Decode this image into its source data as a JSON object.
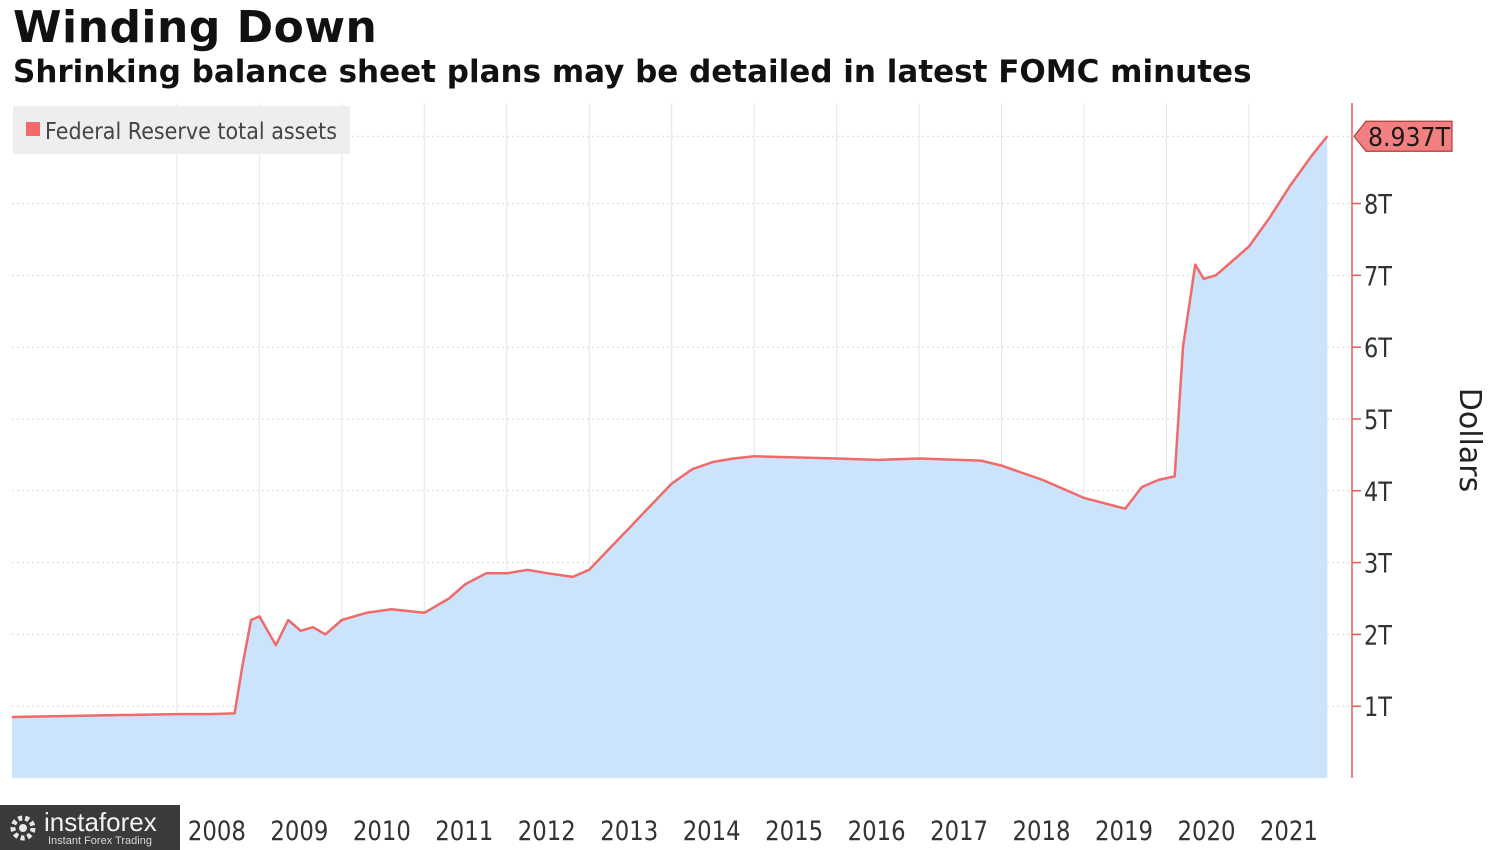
{
  "title": "Winding Down",
  "subtitle": "Shrinking balance sheet plans may be detailed in latest FOMC minutes",
  "watermark": {
    "name": "instaforex",
    "tagline": "Instant Forex Trading"
  },
  "colors": {
    "line": "#f06a6a",
    "area": "#cce4fb",
    "axis": "#e55b5b",
    "grid": "#d9d9d9",
    "label_box": "#f28080"
  },
  "chart_data": {
    "type": "area",
    "title": "Winding Down",
    "subtitle": "Shrinking balance sheet plans may be detailed in latest FOMC minutes",
    "ylabel": "Dollars",
    "xlabel": "",
    "ylim": [
      0,
      9.4
    ],
    "x_range": [
      2006.0,
      2022.25
    ],
    "grid": true,
    "legend_placement": "top-left",
    "x_ticks": [
      {
        "value": 2008,
        "label": "2008"
      },
      {
        "value": 2009,
        "label": "2009"
      },
      {
        "value": 2010,
        "label": "2010"
      },
      {
        "value": 2011,
        "label": "2011"
      },
      {
        "value": 2012,
        "label": "2012"
      },
      {
        "value": 2013,
        "label": "2013"
      },
      {
        "value": 2014,
        "label": "2014"
      },
      {
        "value": 2015,
        "label": "2015"
      },
      {
        "value": 2016,
        "label": "2016"
      },
      {
        "value": 2017,
        "label": "2017"
      },
      {
        "value": 2018,
        "label": "2018"
      },
      {
        "value": 2019,
        "label": "2019"
      },
      {
        "value": 2020,
        "label": "2020"
      },
      {
        "value": 2021,
        "label": "2021"
      }
    ],
    "y_ticks": [
      {
        "value": 1,
        "label": "1T"
      },
      {
        "value": 2,
        "label": "2T"
      },
      {
        "value": 3,
        "label": "3T"
      },
      {
        "value": 4,
        "label": "4T"
      },
      {
        "value": 5,
        "label": "5T"
      },
      {
        "value": 6,
        "label": "6T"
      },
      {
        "value": 7,
        "label": "7T"
      },
      {
        "value": 8,
        "label": "8T"
      }
    ],
    "last_value_label": "8.937T",
    "series": [
      {
        "name": "Federal Reserve total assets",
        "points": [
          [
            2006.0,
            0.85
          ],
          [
            2007.0,
            0.87
          ],
          [
            2008.0,
            0.89
          ],
          [
            2008.4,
            0.89
          ],
          [
            2008.7,
            0.9
          ],
          [
            2008.8,
            1.6
          ],
          [
            2008.9,
            2.2
          ],
          [
            2009.0,
            2.25
          ],
          [
            2009.1,
            2.05
          ],
          [
            2009.2,
            1.85
          ],
          [
            2009.35,
            2.2
          ],
          [
            2009.5,
            2.05
          ],
          [
            2009.65,
            2.1
          ],
          [
            2009.8,
            2.0
          ],
          [
            2010.0,
            2.2
          ],
          [
            2010.3,
            2.3
          ],
          [
            2010.6,
            2.35
          ],
          [
            2011.0,
            2.3
          ],
          [
            2011.3,
            2.5
          ],
          [
            2011.5,
            2.7
          ],
          [
            2011.75,
            2.85
          ],
          [
            2012.0,
            2.85
          ],
          [
            2012.25,
            2.9
          ],
          [
            2012.5,
            2.85
          ],
          [
            2012.8,
            2.8
          ],
          [
            2013.0,
            2.9
          ],
          [
            2013.25,
            3.2
          ],
          [
            2013.5,
            3.5
          ],
          [
            2013.75,
            3.8
          ],
          [
            2014.0,
            4.1
          ],
          [
            2014.25,
            4.3
          ],
          [
            2014.5,
            4.4
          ],
          [
            2014.75,
            4.45
          ],
          [
            2015.0,
            4.48
          ],
          [
            2016.0,
            4.45
          ],
          [
            2016.5,
            4.43
          ],
          [
            2017.0,
            4.45
          ],
          [
            2017.75,
            4.42
          ],
          [
            2018.0,
            4.35
          ],
          [
            2018.5,
            4.15
          ],
          [
            2019.0,
            3.9
          ],
          [
            2019.5,
            3.75
          ],
          [
            2019.7,
            4.05
          ],
          [
            2019.9,
            4.15
          ],
          [
            2020.1,
            4.2
          ],
          [
            2020.2,
            6.0
          ],
          [
            2020.35,
            7.15
          ],
          [
            2020.45,
            6.95
          ],
          [
            2020.6,
            7.0
          ],
          [
            2020.8,
            7.2
          ],
          [
            2021.0,
            7.4
          ],
          [
            2021.25,
            7.8
          ],
          [
            2021.5,
            8.25
          ],
          [
            2021.75,
            8.65
          ],
          [
            2021.95,
            8.937
          ]
        ]
      }
    ]
  }
}
